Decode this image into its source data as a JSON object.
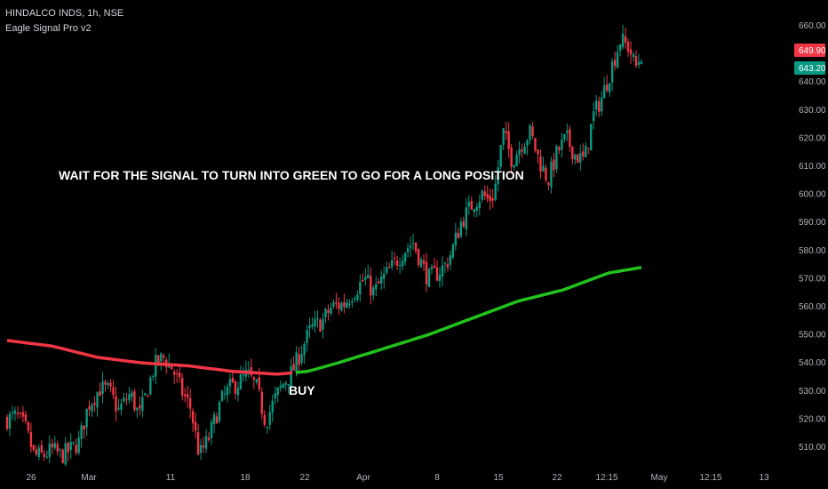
{
  "header": {
    "symbol_line": "HINDALCO INDS, 1h, NSE",
    "indicator_line": "Eagle Signal Pro v2"
  },
  "chart_data": {
    "type": "candlestick",
    "title": "HINDALCO INDS, 1h, NSE",
    "indicator": "Eagle Signal Pro v2",
    "y_axis": {
      "ticks": [
        510,
        520,
        530,
        540,
        550,
        560,
        570,
        580,
        590,
        600,
        610,
        620,
        630,
        640,
        650,
        660
      ],
      "ylim": [
        504,
        666
      ]
    },
    "x_axis": {
      "ticks": [
        "26",
        "Mar",
        "11",
        "18",
        "22",
        "Apr",
        "8",
        "15",
        "22",
        "12:15",
        "May",
        "12:15",
        "13"
      ]
    },
    "price_labels": [
      {
        "value": "649.90",
        "color": "#f23645"
      },
      {
        "value": "643.20",
        "color": "#089981"
      }
    ],
    "close_path": [
      [
        0,
        520
      ],
      [
        0.03,
        521
      ],
      [
        0.06,
        517
      ],
      [
        0.09,
        507
      ],
      [
        0.12,
        507
      ],
      [
        0.15,
        509
      ],
      [
        0.18,
        507
      ],
      [
        0.21,
        509
      ],
      [
        0.24,
        512
      ],
      [
        0.27,
        525
      ],
      [
        0.31,
        531
      ],
      [
        0.34,
        530
      ],
      [
        0.37,
        523
      ],
      [
        0.41,
        529
      ],
      [
        0.44,
        521
      ],
      [
        0.46,
        528
      ],
      [
        0.49,
        539
      ],
      [
        0.52,
        542
      ],
      [
        0.55,
        538
      ],
      [
        0.58,
        530
      ],
      [
        0.61,
        524
      ],
      [
        0.64,
        507
      ],
      [
        0.67,
        513
      ],
      [
        0.71,
        526
      ],
      [
        0.74,
        531
      ],
      [
        0.77,
        533
      ],
      [
        0.8,
        536
      ],
      [
        0.83,
        531
      ],
      [
        0.86,
        519
      ],
      [
        0.89,
        527
      ],
      [
        0.92,
        533
      ],
      [
        0.95,
        537
      ],
      [
        0.98,
        545
      ],
      [
        1.01,
        552
      ],
      [
        1.05,
        555
      ],
      [
        1.08,
        560
      ],
      [
        1.12,
        561
      ],
      [
        1.15,
        565
      ],
      [
        1.19,
        570
      ],
      [
        1.22,
        565
      ],
      [
        1.25,
        570
      ],
      [
        1.28,
        574
      ],
      [
        1.32,
        580
      ],
      [
        1.35,
        583
      ],
      [
        1.38,
        575
      ],
      [
        1.4,
        570
      ],
      [
        1.43,
        572
      ],
      [
        1.46,
        575
      ],
      [
        1.48,
        580
      ],
      [
        1.51,
        590
      ],
      [
        1.55,
        597
      ],
      [
        1.58,
        600
      ],
      [
        1.6,
        598
      ],
      [
        1.62,
        600
      ],
      [
        1.65,
        622
      ],
      [
        1.68,
        612
      ],
      [
        1.71,
        618
      ],
      [
        1.74,
        622
      ],
      [
        1.77,
        612
      ],
      [
        1.8,
        605
      ],
      [
        1.83,
        615
      ],
      [
        1.86,
        620
      ],
      [
        1.89,
        614
      ],
      [
        1.92,
        612
      ],
      [
        1.95,
        628
      ],
      [
        1.98,
        635
      ],
      [
        2.01,
        645
      ],
      [
        2.04,
        655
      ],
      [
        2.07,
        652
      ],
      [
        2.09,
        645
      ],
      [
        2.11,
        650
      ]
    ],
    "signal_line": [
      [
        0,
        548
      ],
      [
        0.15,
        546
      ],
      [
        0.3,
        542
      ],
      [
        0.45,
        540
      ],
      [
        0.6,
        539
      ],
      [
        0.75,
        537
      ],
      [
        0.9,
        536
      ],
      [
        1.0,
        537
      ],
      [
        1.1,
        540
      ],
      [
        1.25,
        545
      ],
      [
        1.4,
        550
      ],
      [
        1.55,
        556
      ],
      [
        1.7,
        562
      ],
      [
        1.85,
        566
      ],
      [
        2.0,
        572
      ],
      [
        2.11,
        574
      ]
    ],
    "signal_color_switch_at": 0.95,
    "annotations": {
      "instruction": "WAIT FOR THE SIGNAL TO TURN INTO GREEN TO GO FOR A LONG POSITION",
      "buy_label": "BUY"
    },
    "colors": {
      "up": "#089981",
      "down": "#f23645",
      "signal_bear": "#f23645",
      "signal_bull": "#22c21c"
    }
  }
}
